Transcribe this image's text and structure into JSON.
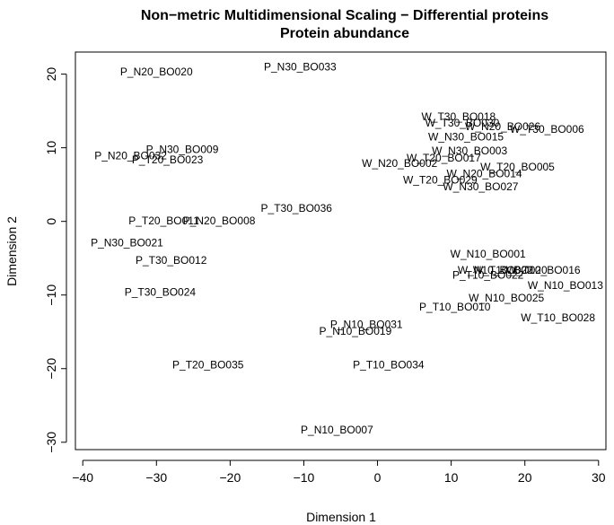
{
  "chart_data": {
    "type": "scatter",
    "title": "Non−metric Multidimensional Scaling −  Differential proteins",
    "subtitle": "Protein abundance",
    "xlabel": "Dimension 1",
    "ylabel": "Dimension 2",
    "xlim": [
      -41,
      31
    ],
    "ylim": [
      -31,
      23
    ],
    "xticks": [
      -40,
      -30,
      -20,
      -10,
      0,
      10,
      20,
      30
    ],
    "yticks": [
      -30,
      -20,
      -10,
      0,
      10,
      20
    ],
    "xtick_labels": [
      "−40",
      "−30",
      "−20",
      "−10",
      "0",
      "10",
      "20",
      "30"
    ],
    "ytick_labels": [
      "−30",
      "−20",
      "−10",
      "0",
      "10",
      "20"
    ],
    "grid": false,
    "legend": "none",
    "points": [
      {
        "label": "P_N20_BO020",
        "x": -30.0,
        "y": 20.3
      },
      {
        "label": "P_N30_BO033",
        "x": -10.5,
        "y": 21.0
      },
      {
        "label": "W_T30_BO018",
        "x": 11.0,
        "y": 14.2
      },
      {
        "label": "W_T30_BO030",
        "x": 11.5,
        "y": 13.4
      },
      {
        "label": "W_N20_BO026",
        "x": 17.0,
        "y": 12.9
      },
      {
        "label": "W_T30_BO006",
        "x": 23.0,
        "y": 12.5
      },
      {
        "label": "W_N30_BO015",
        "x": 12.0,
        "y": 11.5
      },
      {
        "label": "P_N30_BO009",
        "x": -26.5,
        "y": 9.8
      },
      {
        "label": "W_N30_BO003",
        "x": 12.5,
        "y": 9.6
      },
      {
        "label": "P_N20_BO032",
        "x": -33.5,
        "y": 8.9
      },
      {
        "label": "P_T20_BO023",
        "x": -28.5,
        "y": 8.4
      },
      {
        "label": "W_T20_BO017",
        "x": 9.0,
        "y": 8.6
      },
      {
        "label": "W_N20_BO002",
        "x": 3.0,
        "y": 7.9
      },
      {
        "label": "W_T20_BO005",
        "x": 19.0,
        "y": 7.4
      },
      {
        "label": "W_N20_BO014",
        "x": 14.5,
        "y": 6.5
      },
      {
        "label": "W_T20_BO029",
        "x": 8.5,
        "y": 5.6
      },
      {
        "label": "W_N30_BO027",
        "x": 14.0,
        "y": 4.7
      },
      {
        "label": "P_T30_BO036",
        "x": -11.0,
        "y": 1.8
      },
      {
        "label": "P_T20_BO011",
        "x": -29.0,
        "y": 0.1
      },
      {
        "label": "P_N20_BO008",
        "x": -21.5,
        "y": 0.1
      },
      {
        "label": "W_N10_BO001",
        "x": 15.0,
        "y": -4.4
      },
      {
        "label": "P_N30_BO021",
        "x": -34.0,
        "y": -2.9
      },
      {
        "label": "P_T30_BO012",
        "x": -28.0,
        "y": -5.3
      },
      {
        "label": "W_T10_BO016",
        "x": 22.5,
        "y": -6.6
      },
      {
        "label": "W_N10_BO022",
        "x": 16.0,
        "y": -6.6
      },
      {
        "label": "W_T10_BO020",
        "x": 18.0,
        "y": -6.6
      },
      {
        "label": "P_T10_BO022",
        "x": 15.0,
        "y": -7.3
      },
      {
        "label": "W_N10_BO013",
        "x": 25.5,
        "y": -8.7
      },
      {
        "label": "P_T30_BO024",
        "x": -29.5,
        "y": -9.6
      },
      {
        "label": "W_N10_BO025",
        "x": 17.5,
        "y": -10.4
      },
      {
        "label": "P_T10_BO010",
        "x": 10.5,
        "y": -11.6
      },
      {
        "label": "W_T10_BO028",
        "x": 24.5,
        "y": -13.1
      },
      {
        "label": "P_N10_BO031",
        "x": -1.5,
        "y": -14.0
      },
      {
        "label": "P_N10_BO019",
        "x": -3.0,
        "y": -14.9
      },
      {
        "label": "P_T20_BO035",
        "x": -23.0,
        "y": -19.5
      },
      {
        "label": "P_T10_BO034",
        "x": 1.5,
        "y": -19.5
      },
      {
        "label": "P_N10_BO007",
        "x": -5.5,
        "y": -28.3
      }
    ]
  }
}
